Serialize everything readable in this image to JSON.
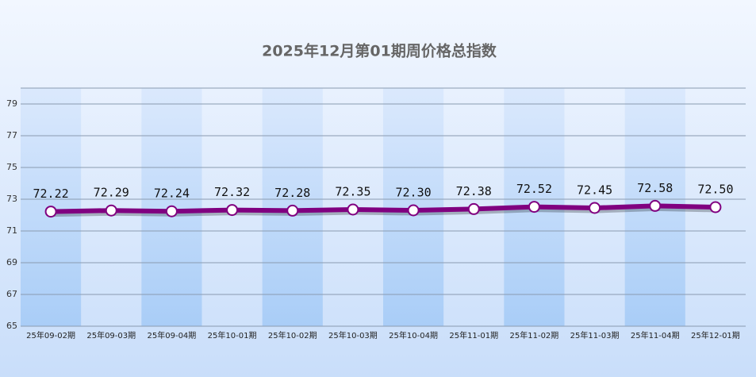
{
  "chart_data": {
    "type": "line",
    "title": "2025年12月第01期周价格总指数",
    "categories": [
      "25年09-02期",
      "25年09-03期",
      "25年09-04期",
      "25年10-01期",
      "25年10-02期",
      "25年10-03期",
      "25年10-04期",
      "25年11-01期",
      "25年11-02期",
      "25年11-03期",
      "25年11-04期",
      "25年12-01期"
    ],
    "series": [
      {
        "name": "周价格总指数",
        "color": "#800080",
        "values": [
          72.22,
          72.29,
          72.24,
          72.32,
          72.28,
          72.35,
          72.3,
          72.38,
          72.52,
          72.45,
          72.58,
          72.5
        ],
        "value_labels": [
          "72.22",
          "72.29",
          "72.24",
          "72.32",
          "72.28",
          "72.35",
          "72.30",
          "72.38",
          "72.52",
          "72.45",
          "72.58",
          "72.50"
        ]
      }
    ],
    "ylim": [
      65,
      80
    ],
    "yticks": [
      65,
      67,
      69,
      71,
      73,
      75,
      77,
      79
    ],
    "grid": true
  }
}
